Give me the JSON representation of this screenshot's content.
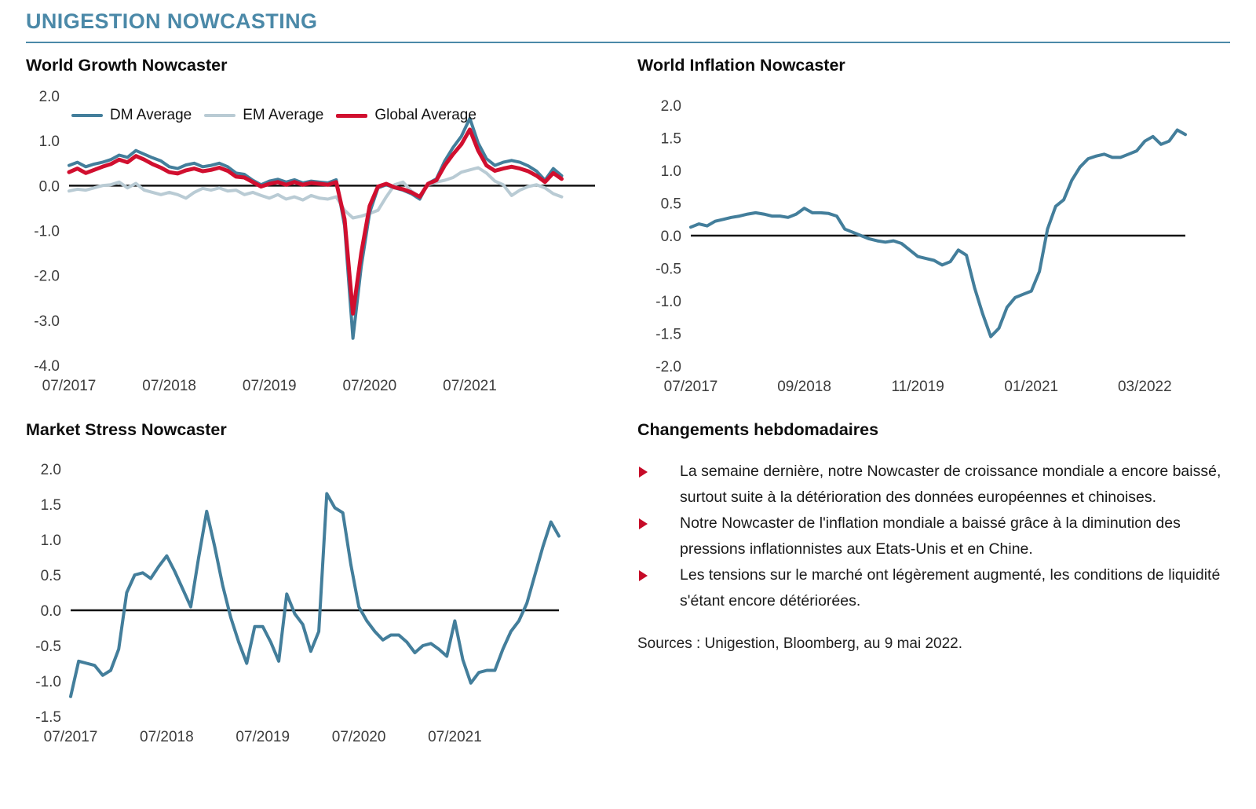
{
  "page": {
    "title": "UNIGESTION NOWCASTING"
  },
  "colors": {
    "accent_teal": "#4b89a8",
    "line_teal": "#437e9b",
    "line_light_blue": "#b9cbd4",
    "line_red": "#d10f2f",
    "bullet_red": "#c60b28",
    "zero_line": "#111111"
  },
  "weekly": {
    "heading": "Changements hebdomadaires",
    "bullets": [
      "La semaine dernière, notre Nowcaster de croissance mondiale a encore baissé, surtout suite à la détérioration des données européennes et chinoises.",
      "Notre Nowcaster de l'inflation mondiale a baissé grâce à la diminution des pressions inflationnistes aux Etats-Unis et en Chine.",
      "Les tensions sur le marché ont légèrement augmenté, les conditions de liquidité s'étant encore détériorées."
    ],
    "sources": "Sources : Unigestion, Bloomberg, au 9 mai 2022."
  },
  "chart_data": [
    {
      "type": "line",
      "title": "World Growth Nowcaster",
      "xlabel": "",
      "ylabel": "",
      "ylim": [
        -4.0,
        2.0
      ],
      "y_ticks": [
        2.0,
        1.0,
        0.0,
        -1.0,
        -2.0,
        -3.0,
        -4.0
      ],
      "grid": false,
      "legend_position": "top",
      "x_total": 64,
      "x_ticks": [
        {
          "label": "07/2017",
          "pos": 0.0
        },
        {
          "label": "07/2018",
          "pos": 0.1905
        },
        {
          "label": "07/2019",
          "pos": 0.381
        },
        {
          "label": "07/2020",
          "pos": 0.5714
        },
        {
          "label": "07/2021",
          "pos": 0.7619
        }
      ],
      "series": [
        {
          "name": "EM Average",
          "color": "#b9cbd4",
          "width": 4,
          "values": [
            -0.12,
            -0.08,
            -0.1,
            -0.05,
            0.0,
            0.02,
            0.08,
            -0.05,
            0.05,
            -0.1,
            -0.15,
            -0.2,
            -0.15,
            -0.2,
            -0.28,
            -0.15,
            -0.06,
            -0.1,
            -0.05,
            -0.12,
            -0.1,
            -0.2,
            -0.15,
            -0.22,
            -0.28,
            -0.2,
            -0.3,
            -0.25,
            -0.32,
            -0.22,
            -0.28,
            -0.3,
            -0.25,
            -0.55,
            -0.72,
            -0.68,
            -0.62,
            -0.55,
            -0.25,
            0.02,
            0.08,
            -0.12,
            -0.25,
            0.02,
            0.08,
            0.12,
            0.18,
            0.3,
            0.35,
            0.4,
            0.28,
            0.1,
            0.02,
            -0.22,
            -0.1,
            -0.02,
            0.02,
            -0.05,
            -0.18,
            -0.25
          ]
        },
        {
          "name": "DM Average",
          "color": "#437e9b",
          "width": 4,
          "values": [
            0.45,
            0.52,
            0.42,
            0.48,
            0.52,
            0.58,
            0.68,
            0.63,
            0.78,
            0.7,
            0.62,
            0.55,
            0.42,
            0.38,
            0.46,
            0.5,
            0.42,
            0.45,
            0.5,
            0.42,
            0.28,
            0.25,
            0.12,
            0.02,
            0.1,
            0.14,
            0.08,
            0.13,
            0.06,
            0.1,
            0.08,
            0.06,
            0.13,
            -0.9,
            -3.4,
            -1.8,
            -0.6,
            -0.05,
            0.02,
            -0.05,
            -0.1,
            -0.18,
            -0.3,
            0.05,
            0.15,
            0.55,
            0.85,
            1.1,
            1.5,
            0.95,
            0.6,
            0.45,
            0.52,
            0.56,
            0.52,
            0.44,
            0.32,
            0.12,
            0.38,
            0.22
          ]
        },
        {
          "name": "Global Average",
          "color": "#d10f2f",
          "width": 5,
          "values": [
            0.3,
            0.38,
            0.28,
            0.35,
            0.42,
            0.48,
            0.58,
            0.52,
            0.66,
            0.58,
            0.48,
            0.4,
            0.3,
            0.27,
            0.34,
            0.38,
            0.32,
            0.35,
            0.4,
            0.33,
            0.2,
            0.18,
            0.08,
            -0.02,
            0.04,
            0.08,
            0.02,
            0.08,
            0.02,
            0.06,
            0.04,
            0.02,
            0.08,
            -0.75,
            -2.85,
            -1.5,
            -0.45,
            -0.02,
            0.04,
            -0.04,
            -0.08,
            -0.15,
            -0.25,
            0.04,
            0.12,
            0.45,
            0.7,
            0.92,
            1.25,
            0.78,
            0.45,
            0.33,
            0.38,
            0.42,
            0.38,
            0.32,
            0.22,
            0.08,
            0.28,
            0.15
          ]
        }
      ]
    },
    {
      "type": "line",
      "title": "World Inflation Nowcaster",
      "xlabel": "",
      "ylabel": "",
      "ylim": [
        -2.0,
        2.0
      ],
      "y_ticks": [
        2.0,
        1.5,
        1.0,
        0.5,
        0.0,
        -0.5,
        -1.0,
        -1.5,
        -2.0
      ],
      "grid": false,
      "legend_position": "none",
      "x_total": 62,
      "x_ticks": [
        {
          "label": "07/2017",
          "pos": 0.0
        },
        {
          "label": "09/2018",
          "pos": 0.2295
        },
        {
          "label": "11/2019",
          "pos": 0.459
        },
        {
          "label": "01/2021",
          "pos": 0.6885
        },
        {
          "label": "03/2022",
          "pos": 0.918
        }
      ],
      "series": [
        {
          "name": "World Inflation Nowcaster",
          "color": "#437e9b",
          "width": 4,
          "values": [
            0.13,
            0.18,
            0.15,
            0.22,
            0.25,
            0.28,
            0.3,
            0.33,
            0.35,
            0.33,
            0.3,
            0.3,
            0.28,
            0.33,
            0.42,
            0.35,
            0.35,
            0.34,
            0.3,
            0.1,
            0.05,
            0.0,
            -0.05,
            -0.08,
            -0.1,
            -0.08,
            -0.12,
            -0.22,
            -0.32,
            -0.35,
            -0.38,
            -0.45,
            -0.4,
            -0.22,
            -0.3,
            -0.8,
            -1.2,
            -1.55,
            -1.42,
            -1.1,
            -0.95,
            -0.9,
            -0.85,
            -0.55,
            0.1,
            0.45,
            0.55,
            0.85,
            1.05,
            1.18,
            1.22,
            1.25,
            1.2,
            1.2,
            1.25,
            1.3,
            1.45,
            1.52,
            1.4,
            1.45,
            1.62,
            1.55
          ]
        }
      ]
    },
    {
      "type": "line",
      "title": "Market Stress Nowcaster",
      "xlabel": "",
      "ylabel": "",
      "ylim": [
        -1.5,
        2.0
      ],
      "y_ticks": [
        2.0,
        1.5,
        1.0,
        0.5,
        0.0,
        -0.5,
        -1.0,
        -1.5
      ],
      "grid": false,
      "legend_position": "none",
      "x_total": 62,
      "x_ticks": [
        {
          "label": "07/2017",
          "pos": 0.0
        },
        {
          "label": "07/2018",
          "pos": 0.1967
        },
        {
          "label": "07/2019",
          "pos": 0.3934
        },
        {
          "label": "07/2020",
          "pos": 0.5902
        },
        {
          "label": "07/2021",
          "pos": 0.7869
        }
      ],
      "series": [
        {
          "name": "Market Stress Nowcaster",
          "color": "#437e9b",
          "width": 4,
          "values": [
            -1.22,
            -0.72,
            -0.75,
            -0.78,
            -0.92,
            -0.85,
            -0.55,
            0.25,
            0.5,
            0.53,
            0.45,
            0.62,
            0.77,
            0.55,
            0.3,
            0.05,
            0.75,
            1.4,
            0.9,
            0.35,
            -0.1,
            -0.45,
            -0.75,
            -0.23,
            -0.23,
            -0.45,
            -0.72,
            0.23,
            -0.05,
            -0.2,
            -0.58,
            -0.3,
            1.65,
            1.45,
            1.38,
            0.65,
            0.05,
            -0.15,
            -0.3,
            -0.42,
            -0.35,
            -0.35,
            -0.45,
            -0.6,
            -0.5,
            -0.47,
            -0.55,
            -0.65,
            -0.15,
            -0.7,
            -1.03,
            -0.88,
            -0.85,
            -0.85,
            -0.55,
            -0.3,
            -0.15,
            0.1,
            0.5,
            0.9,
            1.25,
            1.05
          ]
        }
      ]
    }
  ]
}
